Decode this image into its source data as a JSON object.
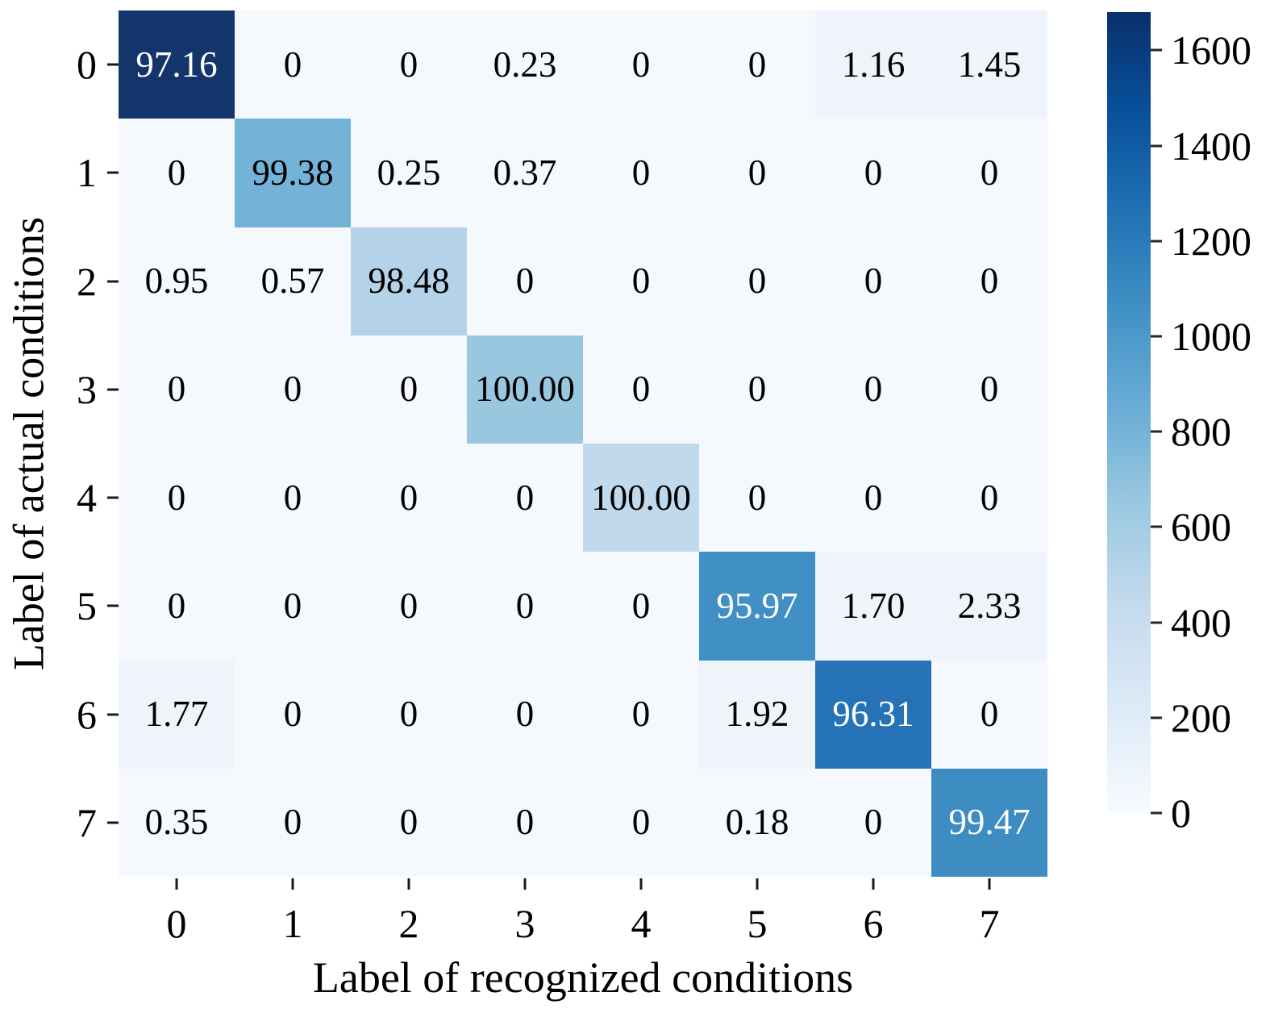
{
  "figure": {
    "background": "#ffffff",
    "text_color": "#000000"
  },
  "chart_data": {
    "type": "heatmap",
    "title": "",
    "xlabel": "Label of recognized conditions",
    "ylabel": "Label of actual conditions",
    "x_tick_labels": [
      "0",
      "1",
      "2",
      "3",
      "4",
      "5",
      "6",
      "7"
    ],
    "y_tick_labels": [
      "0",
      "1",
      "2",
      "3",
      "4",
      "5",
      "6",
      "7"
    ],
    "cell_labels": [
      [
        "97.16",
        "0",
        "0",
        "0.23",
        "0",
        "0",
        "1.16",
        "1.45"
      ],
      [
        "0",
        "99.38",
        "0.25",
        "0.37",
        "0",
        "0",
        "0",
        "0"
      ],
      [
        "0.95",
        "0.57",
        "98.48",
        "0",
        "0",
        "0",
        "0",
        "0"
      ],
      [
        "0",
        "0",
        "0",
        "100.00",
        "0",
        "0",
        "0",
        "0"
      ],
      [
        "0",
        "0",
        "0",
        "0",
        "100.00",
        "0",
        "0",
        "0"
      ],
      [
        "0",
        "0",
        "0",
        "0",
        "0",
        "95.97",
        "1.70",
        "2.33"
      ],
      [
        "1.77",
        "0",
        "0",
        "0",
        "0",
        "1.92",
        "96.31",
        "0"
      ],
      [
        "0.35",
        "0",
        "0",
        "0",
        "0",
        "0.18",
        "0",
        "99.47"
      ]
    ],
    "values_percent": [
      [
        97.16,
        0,
        0,
        0.23,
        0,
        0,
        1.16,
        1.45
      ],
      [
        0,
        99.38,
        0.25,
        0.37,
        0,
        0,
        0,
        0
      ],
      [
        0.95,
        0.57,
        98.48,
        0,
        0,
        0,
        0,
        0
      ],
      [
        0,
        0,
        0,
        100.0,
        0,
        0,
        0,
        0
      ],
      [
        0,
        0,
        0,
        0,
        100.0,
        0,
        0,
        0
      ],
      [
        0,
        0,
        0,
        0,
        0,
        95.97,
        1.7,
        2.33
      ],
      [
        1.77,
        0,
        0,
        0,
        0,
        1.92,
        96.31,
        0
      ],
      [
        0.35,
        0,
        0,
        0,
        0,
        0.18,
        0,
        99.47
      ]
    ],
    "diagonal_colors": [
      "#14356c",
      "#74b3d8",
      "#b4d3e9",
      "#9ac7e0",
      "#c1d9ec",
      "#4190c5",
      "#2672b6",
      "#3d8dc3"
    ],
    "white_text_rows": [
      0,
      5,
      6,
      7
    ],
    "offdiag_zero_color": "#f5f8fc",
    "offdiag_small_color": "#eff4fa",
    "small_value_threshold": 1.0,
    "colorbar": {
      "vmin": 0,
      "vmax": 1680,
      "tick_labels": [
        "1600",
        "1400",
        "1200",
        "1000",
        "800",
        "600",
        "400",
        "200",
        "0"
      ],
      "colormap_name": "Blues",
      "gradient_top_to_bottom": [
        "#08306b",
        "#08519c",
        "#2171b5",
        "#4292c6",
        "#6baed6",
        "#9ecae1",
        "#c6dbef",
        "#deebf7",
        "#f7fbff"
      ]
    }
  }
}
